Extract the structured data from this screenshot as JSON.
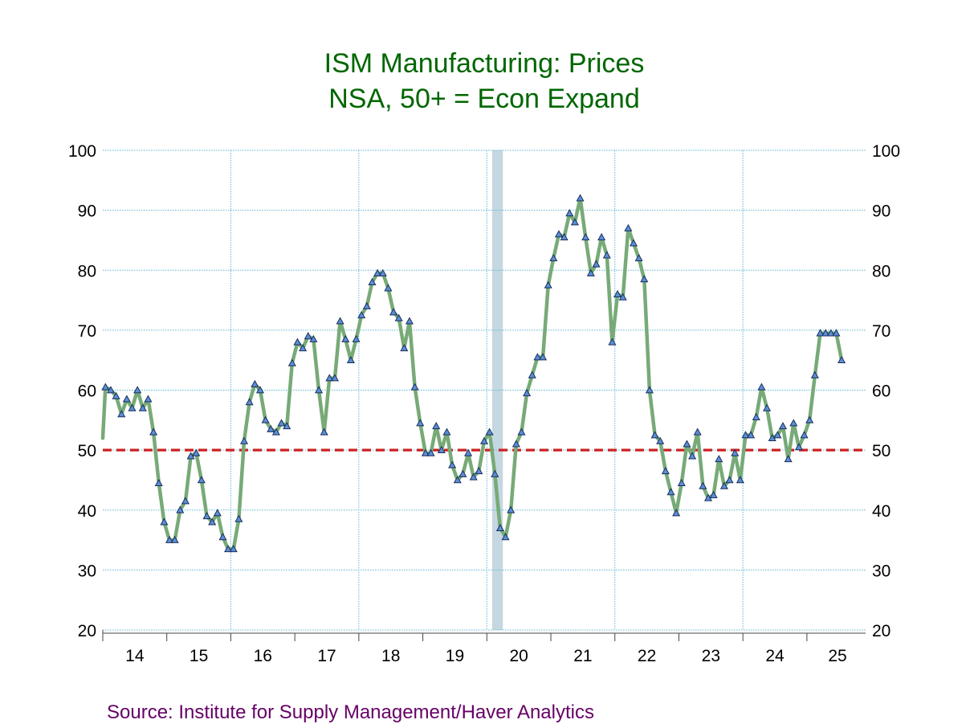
{
  "colors": {
    "title": "#006600",
    "line": "#77aa77",
    "marker_fill": "#5b8fd6",
    "marker_stroke": "#1a2e5a",
    "reference_line": "#cc2222",
    "recession_band": "#c5d7e0",
    "grid": "#5ab8d6",
    "source": "#660066"
  },
  "chart_data": {
    "type": "line",
    "title": "ISM Manufacturing: Prices",
    "subtitle": "NSA, 50+ = Econ Expand",
    "source": "Source:  Institute for Supply Management/Haver Analytics",
    "ylim": [
      20,
      100
    ],
    "yticks": [
      "100",
      "90",
      "80",
      "70",
      "60",
      "50",
      "40",
      "30",
      "20"
    ],
    "ytick_values": [
      100,
      90,
      80,
      70,
      60,
      50,
      40,
      30,
      20
    ],
    "year_labels": [
      "14",
      "15",
      "16",
      "17",
      "18",
      "19",
      "20",
      "21",
      "22",
      "23",
      "24",
      "25"
    ],
    "x_start": "2014-01",
    "x_range_years": [
      2014,
      2025.917
    ],
    "grid": true,
    "secondary_y_axis": true,
    "reference_line": {
      "value": 50
    },
    "recession_band": {
      "start": "2020-02",
      "end": "2020-04"
    },
    "series": [
      {
        "frequency": "monthly",
        "values": [
          60.5,
          60.0,
          59.0,
          56.0,
          58.5,
          57.0,
          60.0,
          57.0,
          58.5,
          53.0,
          44.5,
          38.0,
          35.0,
          35.0,
          40.0,
          41.5,
          49.0,
          49.5,
          45.0,
          39.0,
          38.0,
          39.5,
          35.5,
          33.5,
          33.5,
          38.5,
          51.5,
          58.0,
          61.0,
          60.0,
          55.0,
          53.5,
          53.0,
          54.5,
          54.0,
          64.5,
          68.0,
          67.0,
          69.0,
          68.5,
          60.0,
          53.0,
          62.0,
          62.0,
          71.5,
          68.5,
          65.0,
          68.5,
          72.5,
          74.0,
          78.0,
          79.5,
          79.5,
          77.0,
          73.0,
          72.0,
          67.0,
          71.5,
          60.5,
          54.5,
          49.5,
          49.5,
          54.0,
          50.0,
          53.0,
          47.5,
          45.0,
          46.0,
          49.5,
          45.5,
          46.5,
          51.5,
          53.0,
          46.0,
          37.0,
          35.5,
          40.0,
          51.0,
          53.0,
          59.5,
          62.5,
          65.5,
          65.5,
          77.5,
          82.0,
          86.0,
          85.5,
          89.5,
          88.0,
          92.0,
          85.5,
          79.5,
          81.0,
          85.5,
          82.5,
          68.0,
          76.0,
          75.5,
          87.0,
          84.5,
          82.0,
          78.5,
          60.0,
          52.5,
          51.5,
          46.5,
          43.0,
          39.5,
          44.5,
          51.0,
          49.0,
          53.0,
          44.0,
          42.0,
          42.5,
          48.5,
          44.0,
          45.0,
          49.5,
          45.0,
          52.5,
          52.5,
          55.5,
          60.5,
          57.0,
          52.0,
          52.5,
          54.0,
          48.5,
          54.5,
          50.5,
          52.5,
          55.0,
          62.5,
          69.5,
          69.5,
          69.5,
          69.5,
          65.0
        ]
      }
    ]
  }
}
